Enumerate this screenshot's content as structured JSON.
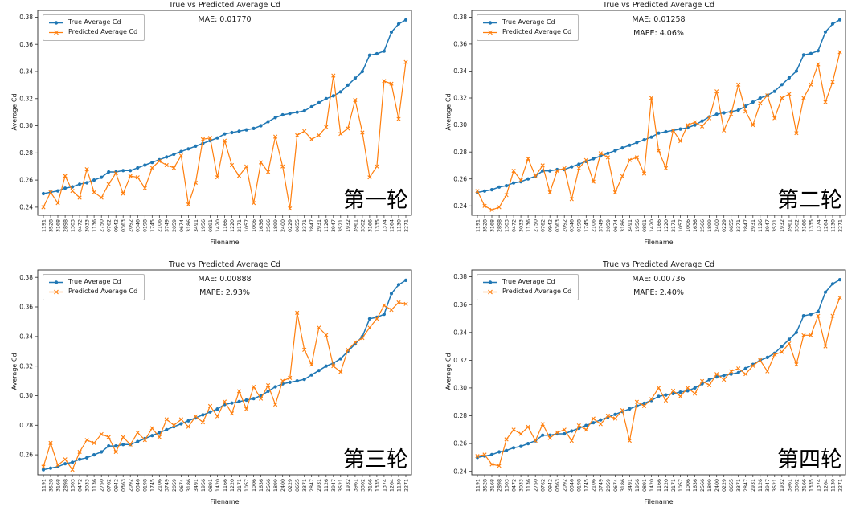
{
  "chart_data": {
    "type": "line",
    "title": "True vs Predicted Average Cd",
    "xlabel": "Filename",
    "ylabel": "Average Cd",
    "colors": {
      "true_series": "#1f77b4",
      "predicted_series": "#ff7f0e"
    },
    "legend": {
      "true_label": "True Average Cd",
      "predicted_label": "Predicted Average Cd"
    },
    "legend_position": "upper left",
    "grid": false,
    "categories": [
      "1191",
      "3528",
      "3168",
      "2898",
      "1303",
      "0472",
      "3033",
      "1136",
      "2750",
      "0762",
      "0942",
      "0363",
      "2092",
      "0346",
      "0198",
      "1745",
      "2106",
      "3749",
      "2059",
      "0674",
      "3186",
      "3491",
      "1956",
      "0891",
      "1420",
      "1166",
      "1220",
      "2171",
      "1057",
      "1006",
      "1636",
      "2566",
      "1899",
      "2400",
      "0229",
      "0655",
      "3371",
      "2847",
      "2931",
      "1126",
      "3947",
      "3521",
      "1932",
      "3961",
      "3302",
      "3166",
      "1335",
      "1374",
      "1264",
      "1130",
      "2271"
    ],
    "true_series": {
      "name": "True Average Cd",
      "values": [
        0.25,
        0.251,
        0.252,
        0.254,
        0.255,
        0.257,
        0.258,
        0.26,
        0.262,
        0.266,
        0.266,
        0.267,
        0.267,
        0.269,
        0.271,
        0.273,
        0.275,
        0.277,
        0.279,
        0.281,
        0.283,
        0.285,
        0.287,
        0.289,
        0.291,
        0.294,
        0.295,
        0.296,
        0.297,
        0.298,
        0.3,
        0.303,
        0.306,
        0.308,
        0.309,
        0.31,
        0.311,
        0.314,
        0.317,
        0.32,
        0.322,
        0.325,
        0.33,
        0.335,
        0.34,
        0.352,
        0.353,
        0.355,
        0.369,
        0.375,
        0.378
      ]
    },
    "charts": [
      {
        "round_label": "第一轮",
        "mae_text": "MAE: 0.01770",
        "ylim": [
          0.234,
          0.385
        ],
        "yticks": [
          0.24,
          0.26,
          0.28,
          0.3,
          0.32,
          0.34,
          0.36,
          0.38
        ],
        "predicted": [
          0.24,
          0.251,
          0.243,
          0.263,
          0.252,
          0.247,
          0.268,
          0.251,
          0.247,
          0.257,
          0.265,
          0.25,
          0.263,
          0.262,
          0.254,
          0.269,
          0.274,
          0.271,
          0.269,
          0.278,
          0.242,
          0.258,
          0.29,
          0.291,
          0.262,
          0.289,
          0.271,
          0.263,
          0.27,
          0.243,
          0.273,
          0.266,
          0.292,
          0.27,
          0.239,
          0.293,
          0.296,
          0.29,
          0.293,
          0.299,
          0.337,
          0.294,
          0.298,
          0.319,
          0.295,
          0.262,
          0.27,
          0.333,
          0.331,
          0.305,
          0.347
        ]
      },
      {
        "round_label": "第二轮",
        "mae_text": "MAE: 0.01258",
        "mape_text": "MAPE: 4.06%",
        "ylim": [
          0.233,
          0.385
        ],
        "yticks": [
          0.24,
          0.26,
          0.28,
          0.3,
          0.32,
          0.34,
          0.36,
          0.38
        ],
        "predicted": [
          0.251,
          0.24,
          0.237,
          0.239,
          0.248,
          0.266,
          0.259,
          0.275,
          0.262,
          0.27,
          0.25,
          0.266,
          0.268,
          0.245,
          0.268,
          0.274,
          0.258,
          0.279,
          0.276,
          0.25,
          0.262,
          0.274,
          0.276,
          0.264,
          0.32,
          0.281,
          0.268,
          0.296,
          0.288,
          0.3,
          0.302,
          0.299,
          0.305,
          0.325,
          0.296,
          0.308,
          0.33,
          0.31,
          0.3,
          0.316,
          0.322,
          0.305,
          0.32,
          0.323,
          0.294,
          0.32,
          0.33,
          0.345,
          0.317,
          0.332,
          0.354
        ]
      },
      {
        "round_label": "第三轮",
        "mae_text": "MAE: 0.00888",
        "mape_text": "MAPE: 2.93%",
        "ylim": [
          0.2465,
          0.385
        ],
        "yticks": [
          0.26,
          0.28,
          0.3,
          0.32,
          0.34,
          0.36,
          0.38
        ],
        "predicted": [
          0.252,
          0.268,
          0.253,
          0.257,
          0.25,
          0.262,
          0.27,
          0.268,
          0.274,
          0.272,
          0.262,
          0.272,
          0.267,
          0.275,
          0.27,
          0.278,
          0.272,
          0.284,
          0.28,
          0.284,
          0.279,
          0.286,
          0.282,
          0.293,
          0.286,
          0.296,
          0.288,
          0.303,
          0.291,
          0.306,
          0.298,
          0.307,
          0.294,
          0.31,
          0.312,
          0.356,
          0.331,
          0.321,
          0.346,
          0.341,
          0.32,
          0.316,
          0.331,
          0.336,
          0.339,
          0.346,
          0.352,
          0.361,
          0.358,
          0.363,
          0.362
        ]
      },
      {
        "round_label": "第四轮",
        "mae_text": "MAE: 0.00736",
        "mape_text": "MAPE: 2.40%",
        "ylim": [
          0.2375,
          0.385
        ],
        "yticks": [
          0.24,
          0.26,
          0.28,
          0.3,
          0.32,
          0.34,
          0.36,
          0.38
        ],
        "predicted": [
          0.251,
          0.252,
          0.245,
          0.244,
          0.263,
          0.27,
          0.267,
          0.272,
          0.262,
          0.274,
          0.264,
          0.268,
          0.27,
          0.262,
          0.273,
          0.27,
          0.278,
          0.274,
          0.28,
          0.278,
          0.284,
          0.262,
          0.29,
          0.287,
          0.292,
          0.3,
          0.291,
          0.298,
          0.294,
          0.3,
          0.296,
          0.305,
          0.302,
          0.31,
          0.306,
          0.312,
          0.314,
          0.31,
          0.316,
          0.32,
          0.312,
          0.324,
          0.326,
          0.332,
          0.317,
          0.338,
          0.338,
          0.352,
          0.33,
          0.352,
          0.365
        ]
      }
    ]
  }
}
